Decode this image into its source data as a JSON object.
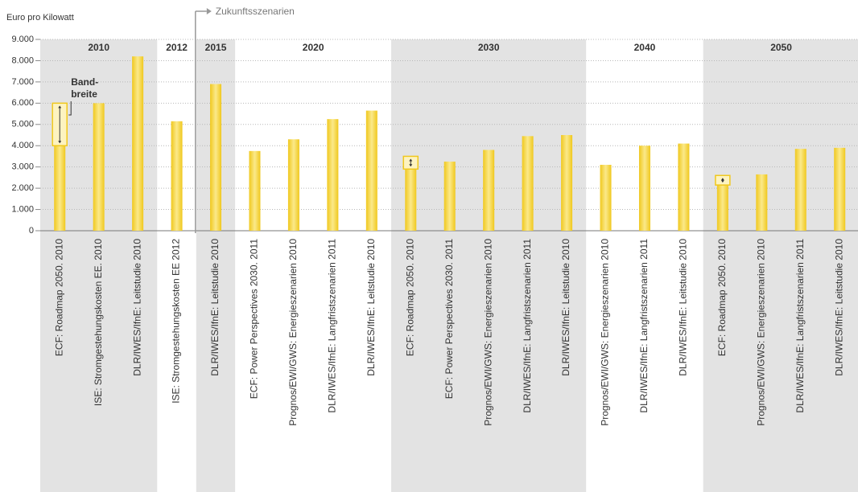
{
  "chart_data": {
    "type": "bar",
    "y_label": "Euro pro Kilowatt",
    "annotation": "Zukunftsszenarien",
    "band_label": [
      "Band-",
      "breite"
    ],
    "color": "#f4d23c",
    "ylim": [
      0,
      9000
    ],
    "yticks": [
      0,
      {
        "value": 1000,
        "label": "1.000"
      },
      {
        "value": 2000,
        "label": "2.000"
      },
      {
        "value": 3000,
        "label": "3.000"
      },
      {
        "value": 4000,
        "label": "4.000"
      },
      {
        "value": 5000,
        "label": "5.000"
      },
      {
        "value": 6000,
        "label": "6.000"
      },
      {
        "value": 7000,
        "label": "7.000"
      },
      {
        "value": 8000,
        "label": "8.000"
      },
      {
        "value": 9000,
        "label": "9.000"
      }
    ],
    "grid": true,
    "groups": [
      {
        "label": "2010",
        "categories": [
          "ECF: Roadmap 2050. 2010",
          "ISE: Stromgestehungskosten EE. 2010",
          "DLR/IWES/IfnE: Leitstudie 2010"
        ],
        "values": [
          6000,
          6000,
          8200
        ],
        "range_low": [
          4000,
          null,
          null
        ]
      },
      {
        "label": "2012",
        "categories": [
          "ISE: Stromgestehungskosten EE 2012"
        ],
        "values": [
          5150
        ],
        "range_low": [
          null
        ]
      },
      {
        "label": "2015",
        "categories": [
          "DLR/IWES/IfnE: Leitstudie 2010"
        ],
        "values": [
          6900
        ],
        "range_low": [
          null
        ]
      },
      {
        "label": "2020",
        "categories": [
          "ECF: Power Perspectives 2030. 2011",
          "Prognos/EWI/GWS: Energieszenarien 2010",
          "DLR/IWES/IfnE: Langfristszenarien 2011",
          "DLR/IWES/IfnE: Leitstudie 2010"
        ],
        "values": [
          3750,
          4300,
          5250,
          5650
        ],
        "range_low": [
          null,
          null,
          null,
          null
        ]
      },
      {
        "label": "2030",
        "categories": [
          "ECF: Roadmap 2050. 2010",
          "ECF: Power Perspectives 2030. 2011",
          "Prognos/EWI/GWS: Energieszenarien 2010",
          "DLR/IWES/IfnE: Langfristszenarien 2011",
          "DLR/IWES/IfnE: Leitstudie 2010"
        ],
        "values": [
          3500,
          3250,
          3800,
          4450,
          4500
        ],
        "range_low": [
          2900,
          null,
          null,
          null,
          null
        ]
      },
      {
        "label": "2040",
        "categories": [
          "Prognos/EWI/GWS: Energieszenarien 2010",
          "DLR/IWES/IfnE: Langfristszenarien 2011",
          "DLR/IWES/IfnE: Leitstudie 2010"
        ],
        "values": [
          3100,
          4000,
          4100
        ],
        "range_low": [
          null,
          null,
          null
        ]
      },
      {
        "label": "2050",
        "categories": [
          "ECF: Roadmap 2050. 2010",
          "Prognos/EWI/GWS: Energieszenarien 2010",
          "DLR/IWES/IfnE: Langfristszenarien 2011",
          "DLR/IWES/IfnE: Leitstudie 2010"
        ],
        "values": [
          2600,
          2650,
          3850,
          3900
        ],
        "range_low": [
          2150,
          null,
          null,
          null
        ]
      }
    ]
  }
}
